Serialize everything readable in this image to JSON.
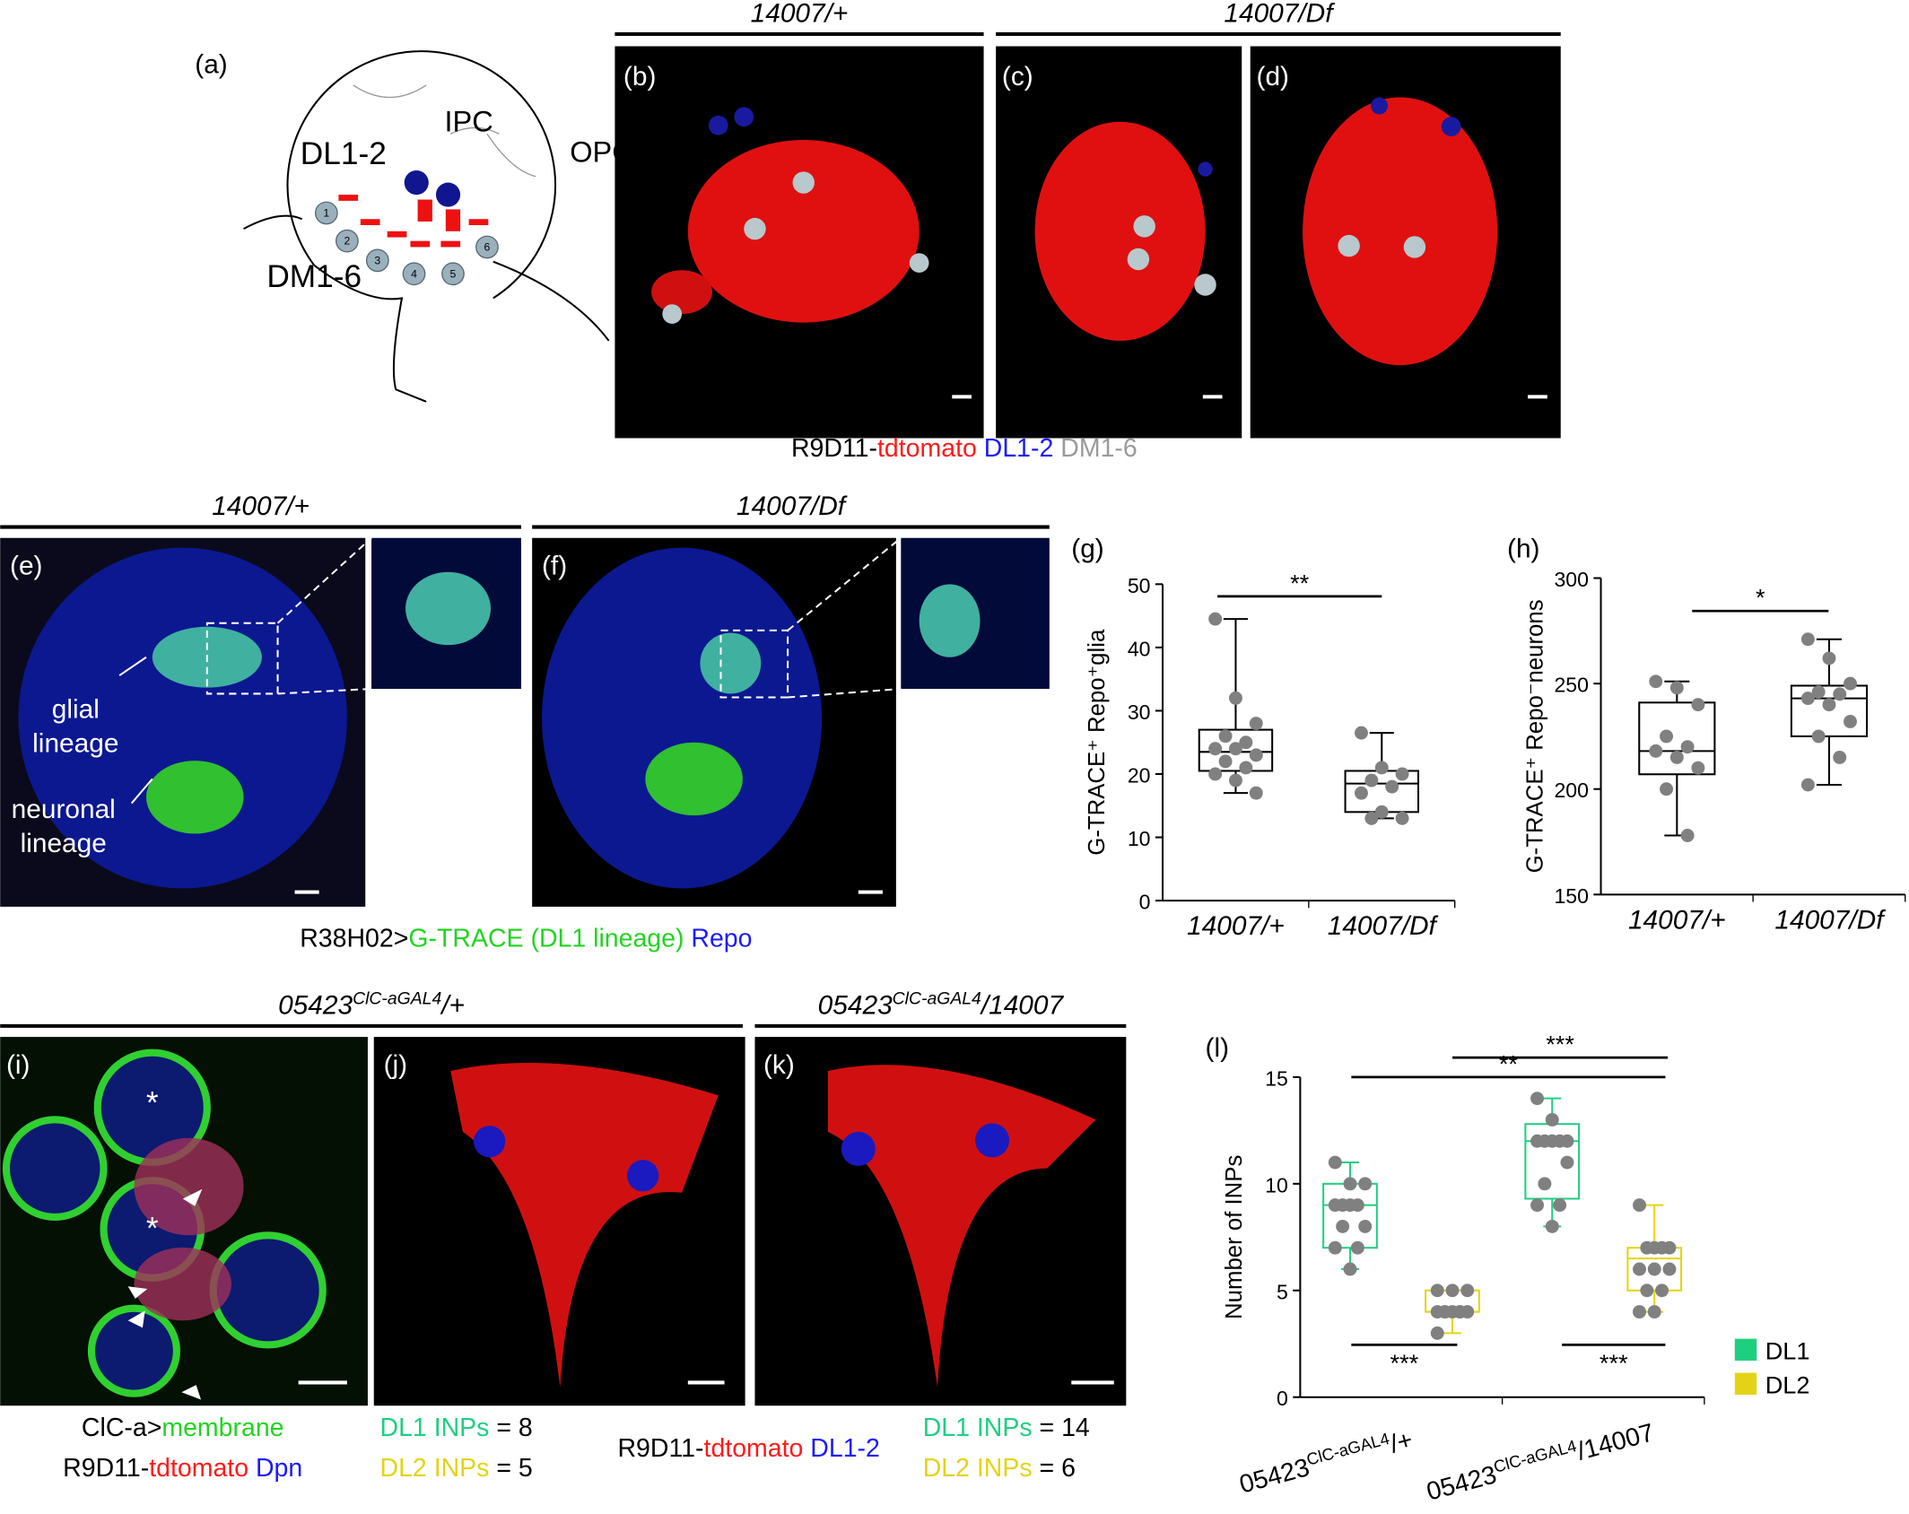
{
  "figure": {
    "panel_labels": [
      "(a)",
      "(b)",
      "(c)",
      "(d)",
      "(e)",
      "(f)",
      "(g)",
      "(h)",
      "(i)",
      "(j)",
      "(k)",
      "(l)"
    ],
    "schematic": {
      "labels": [
        "IPC",
        "OPC",
        "DL1-2",
        "DM1-6"
      ],
      "numbers": [
        "1",
        "2",
        "3",
        "4",
        "5",
        "6"
      ]
    },
    "headers": [
      {
        "text": "14007/+"
      },
      {
        "text": "14007/Df"
      },
      {
        "text": "14007/+"
      },
      {
        "text": "14007/Df"
      },
      {
        "base": "05423",
        "sup": "ClC-aGAL4",
        "rest": "/+"
      },
      {
        "base": "05423",
        "sup": "ClC-aGAL4",
        "rest": "/14007"
      }
    ],
    "image_labels": [
      "glial",
      "lineage",
      "neuronal",
      "lineage",
      "*",
      "*"
    ],
    "captions": [
      [
        {
          "text": "R9D11-",
          "color": "#000000"
        },
        {
          "text": "tdtomato",
          "color": "#ff1a1a"
        },
        {
          "text": " DL1-2",
          "color": "#1a1aff"
        },
        {
          "text": " DM1-6",
          "color": "#9a9a9a"
        }
      ],
      [
        {
          "text": "R38H02>",
          "color": "#000000"
        },
        {
          "text": "G-TRACE (DL1 lineage)",
          "color": "#22d422"
        },
        {
          "text": " Repo",
          "color": "#1a1aff"
        }
      ],
      [
        {
          "text": "ClC-a>",
          "color": "#000000"
        },
        {
          "text": "membrane",
          "color": "#22d422"
        }
      ],
      [
        {
          "text": "R9D11-",
          "color": "#000000"
        },
        {
          "text": "tdtomato",
          "color": "#ff1a1a"
        },
        {
          "text": " Dpn",
          "color": "#1a1aff"
        }
      ],
      [
        {
          "text": "DL1 INPs",
          "color": "#1fcf80"
        },
        {
          "text": " = 8",
          "color": "#000000"
        }
      ],
      [
        {
          "text": "DL2 INPs",
          "color": "#e2d414"
        },
        {
          "text": " = 5",
          "color": "#000000"
        }
      ],
      [
        {
          "text": "R9D11-",
          "color": "#000000"
        },
        {
          "text": "tdtomato",
          "color": "#ff1a1a"
        },
        {
          "text": " DL1-2",
          "color": "#1a1aff"
        }
      ],
      [
        {
          "text": "DL1 INPs",
          "color": "#1fcf80"
        },
        {
          "text": " = 14",
          "color": "#000000"
        }
      ],
      [
        {
          "text": "DL2 INPs",
          "color": "#e2d414"
        },
        {
          "text": " = 6",
          "color": "#000000"
        }
      ]
    ]
  },
  "chart_data": [
    {
      "type": "box",
      "y_label": "G-TRACE⁺ Repo⁺glia",
      "categories": [
        {
          "text": "14007/+"
        },
        {
          "text": "14007/Df"
        }
      ],
      "ylim": [
        0,
        50
      ],
      "yticks": [
        0,
        10,
        20,
        30,
        40,
        50
      ],
      "series": [
        {
          "color": "#000000",
          "point_color": "#808080",
          "boxes": [
            {
              "min": 17,
              "q1": 20.5,
              "median": 23.5,
              "q3": 27,
              "max": 44.5,
              "points": [
                44.5,
                32,
                28,
                26,
                25,
                24,
                24,
                23,
                22,
                21,
                20,
                19,
                17
              ]
            },
            {
              "min": 13,
              "q1": 14,
              "median": 18.5,
              "q3": 20.5,
              "max": 26.5,
              "points": [
                26.5,
                21,
                20,
                19,
                18,
                17,
                14,
                13,
                13
              ]
            }
          ]
        }
      ],
      "significance": [
        "**"
      ]
    },
    {
      "type": "box",
      "y_label": "G-TRACE⁺ Repo⁻neurons",
      "categories": [
        {
          "text": "14007/+"
        },
        {
          "text": "14007/Df"
        }
      ],
      "ylim": [
        150,
        300
      ],
      "yticks": [
        150,
        200,
        250,
        300
      ],
      "series": [
        {
          "color": "#000000",
          "point_color": "#808080",
          "boxes": [
            {
              "min": 178,
              "q1": 207,
              "median": 218,
              "q3": 241,
              "max": 251,
              "points": [
                251,
                248,
                240,
                225,
                220,
                218,
                215,
                210,
                200,
                178
              ]
            },
            {
              "min": 202,
              "q1": 225,
              "median": 243,
              "q3": 249,
              "max": 271,
              "points": [
                271,
                262,
                250,
                246,
                245,
                243,
                240,
                232,
                225,
                215,
                202
              ]
            }
          ]
        }
      ],
      "significance": [
        "*"
      ]
    },
    {
      "type": "box",
      "y_label": "Number of INPs",
      "categories": [
        {
          "base": "05423",
          "sup": "ClC-aGAL4",
          "rest": "/+"
        },
        {
          "base": "05423",
          "sup": "ClC-aGAL4",
          "rest": "/14007"
        }
      ],
      "ylim": [
        0,
        15
      ],
      "yticks": [
        0,
        5,
        10,
        15
      ],
      "series": [
        {
          "name": "DL1",
          "color": "#1fcf80",
          "point_color": "#808080",
          "boxes": [
            {
              "min": 6,
              "q1": 7,
              "median": 9,
              "q3": 10,
              "max": 11,
              "points": [
                11,
                10,
                10,
                9,
                9,
                9,
                9,
                8,
                8,
                7,
                7,
                6
              ]
            },
            {
              "min": 8,
              "q1": 9.3,
              "median": 12,
              "q3": 12.8,
              "max": 14,
              "points": [
                14,
                13,
                12,
                12,
                12,
                12,
                12,
                11,
                10,
                9,
                9,
                8
              ]
            }
          ]
        },
        {
          "name": "DL2",
          "color": "#e2d414",
          "point_color": "#808080",
          "boxes": [
            {
              "min": 3,
              "q1": 4,
              "median": 4,
              "q3": 5,
              "max": 5,
              "points": [
                5,
                5,
                5,
                4,
                4,
                4,
                4,
                4,
                4,
                4,
                3
              ]
            },
            {
              "min": 4,
              "q1": 5,
              "median": 6.5,
              "q3": 7,
              "max": 9,
              "points": [
                9,
                7,
                7,
                7,
                7,
                6,
                6,
                6,
                5,
                5,
                4,
                4
              ]
            }
          ]
        }
      ],
      "significance": [
        "**",
        "***",
        "***",
        "***"
      ]
    }
  ]
}
